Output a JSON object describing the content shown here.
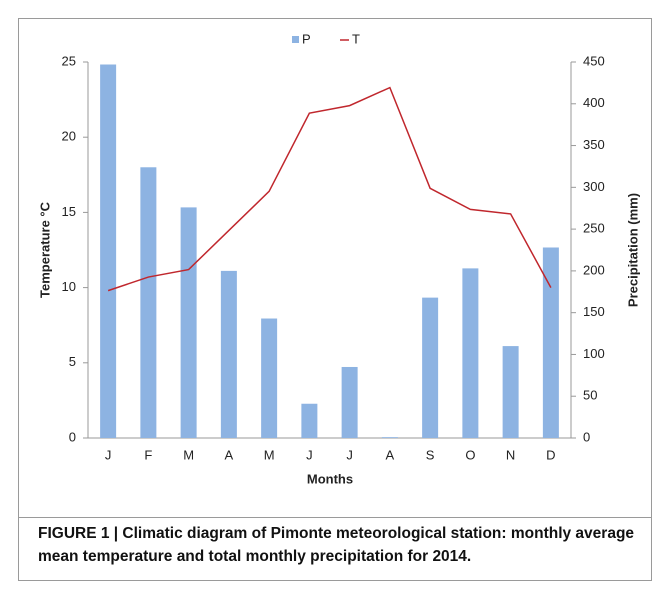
{
  "chart_data": {
    "type": "combo",
    "categories": [
      "J",
      "F",
      "M",
      "A",
      "M",
      "J",
      "J",
      "A",
      "S",
      "O",
      "N",
      "D"
    ],
    "series": [
      {
        "name": "P",
        "type": "bar",
        "axis": "y2",
        "color": "#8db3e2",
        "values": [
          447,
          324,
          276,
          200,
          143,
          41,
          85,
          1,
          168,
          203,
          110,
          228
        ]
      },
      {
        "name": "T",
        "type": "line",
        "color": "#c0272d",
        "values": [
          9.8,
          10.7,
          11.2,
          13.8,
          16.4,
          21.6,
          22.1,
          23.3,
          16.6,
          15.2,
          14.9,
          10.0
        ]
      }
    ],
    "xlabel": "Months",
    "ylabel": "Temperature °C",
    "y2label": "Precipitation (mm)",
    "ylim": [
      0,
      25
    ],
    "yticks": [
      0,
      5,
      10,
      15,
      20,
      25
    ],
    "y2lim": [
      0,
      450
    ],
    "y2ticks": [
      0,
      50,
      100,
      150,
      200,
      250,
      300,
      350,
      400,
      450
    ],
    "legend": "top",
    "grid": false
  },
  "caption": "FIGURE 1 | Climatic diagram of Pimonte meteorological station: monthly average mean temperature and total monthly precipitation for 2014."
}
